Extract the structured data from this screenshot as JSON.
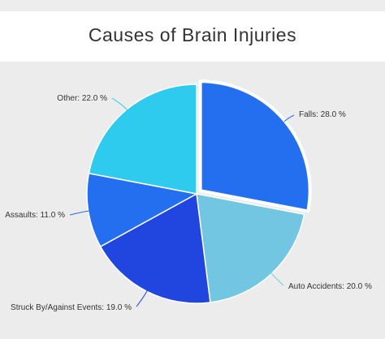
{
  "chart_data": {
    "type": "pie",
    "title": "Causes of Brain Injuries",
    "slices": [
      {
        "label": "Falls",
        "value": 28.0,
        "display": "Falls: 28.0 %",
        "color": "#236ff0",
        "exploded": true
      },
      {
        "label": "Auto Accidents",
        "value": 20.0,
        "display": "Auto Accidents: 20.0 %",
        "color": "#72c6e2",
        "exploded": false
      },
      {
        "label": "Struck By/Against Events",
        "value": 19.0,
        "display": "Struck By/Against Events: 19.0 %",
        "color": "#2046df",
        "exploded": false
      },
      {
        "label": "Assaults",
        "value": 11.0,
        "display": "Assaults: 11.0 %",
        "color": "#236ff0",
        "exploded": false
      },
      {
        "label": "Other",
        "value": 22.0,
        "display": "Other: 22.0 %",
        "color": "#2ecbef",
        "exploded": false
      }
    ],
    "start_angle": "12 o'clock",
    "direction": "clockwise",
    "legend": "none"
  }
}
